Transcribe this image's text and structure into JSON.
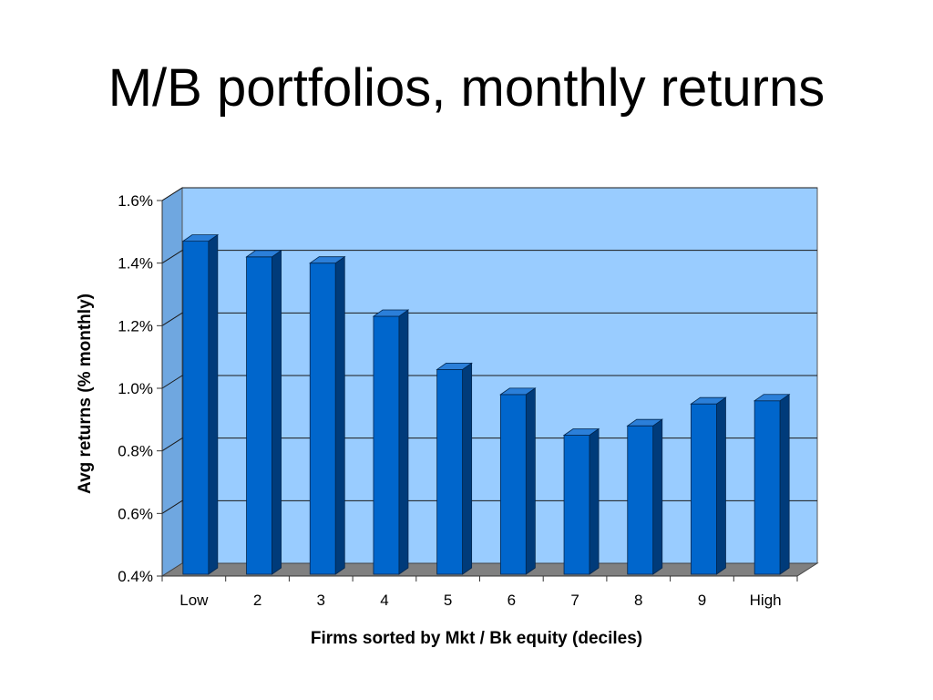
{
  "slide": {
    "title": "M/B portfolios, monthly returns"
  },
  "colors": {
    "plot_back": "#99ccff",
    "plot_side": "#6fa7e0",
    "floor": "#808080",
    "bar_front": "#0066cc",
    "bar_side": "#003b7a",
    "bar_top": "#2b7fd9",
    "gridline": "#1a1a1a"
  },
  "chart_data": {
    "type": "bar",
    "title": "",
    "xlabel": "Firms sorted by Mkt / Bk equity (deciles)",
    "ylabel": "Avg returns (% monthly)",
    "categories": [
      "Low",
      "2",
      "3",
      "4",
      "5",
      "6",
      "7",
      "8",
      "9",
      "High"
    ],
    "values": [
      1.47,
      1.42,
      1.4,
      1.23,
      1.06,
      0.98,
      0.85,
      0.88,
      0.95,
      0.96
    ],
    "value_unit": "%",
    "ylim": [
      0.4,
      1.6
    ],
    "yticks": [
      "0.4%",
      "0.6%",
      "0.8%",
      "1.0%",
      "1.2%",
      "1.4%",
      "1.6%"
    ],
    "ytick_values": [
      0.4,
      0.6,
      0.8,
      1.0,
      1.2,
      1.4,
      1.6
    ],
    "grid": true,
    "style": "3d-column"
  }
}
